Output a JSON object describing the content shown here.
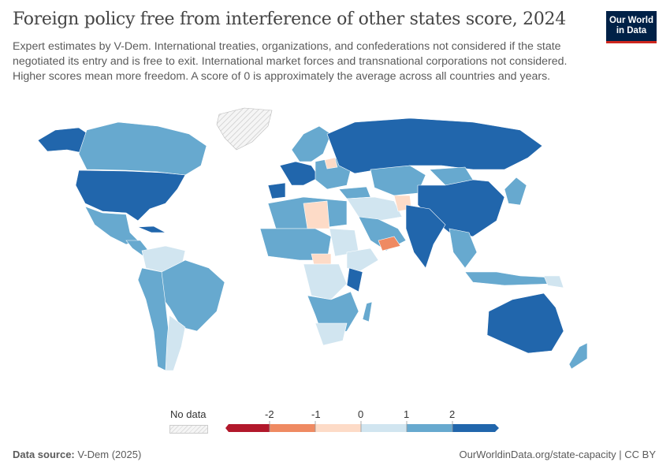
{
  "title": "Foreign policy free from interference of other states score, 2024",
  "subtitle": "Expert estimates by V-Dem. International treaties, organizations, and confederations not considered if the state negotiated its entry and is free to exit. International market forces and transnational corporations not considered. Higher scores mean more freedom. A score of 0 is approximately the average across all countries and years.",
  "logo": "Our World in Data",
  "legend": {
    "no_data_label": "No data",
    "ticks": [
      "-2",
      "-1",
      "0",
      "1",
      "2"
    ],
    "bins": [
      {
        "range": "< -2",
        "color": "#b2182b"
      },
      {
        "range": "-2 to -1",
        "color": "#ef8a62"
      },
      {
        "range": "-1 to 0",
        "color": "#fddbc7"
      },
      {
        "range": "0 to 1",
        "color": "#d1e5f0"
      },
      {
        "range": "1 to 2",
        "color": "#67a9cf"
      },
      {
        "range": "> 2",
        "color": "#2166ac"
      }
    ]
  },
  "footer": {
    "source_label": "Data source:",
    "source": "V-Dem (2025)",
    "url": "OurWorldinData.org/state-capacity | CC BY"
  }
}
